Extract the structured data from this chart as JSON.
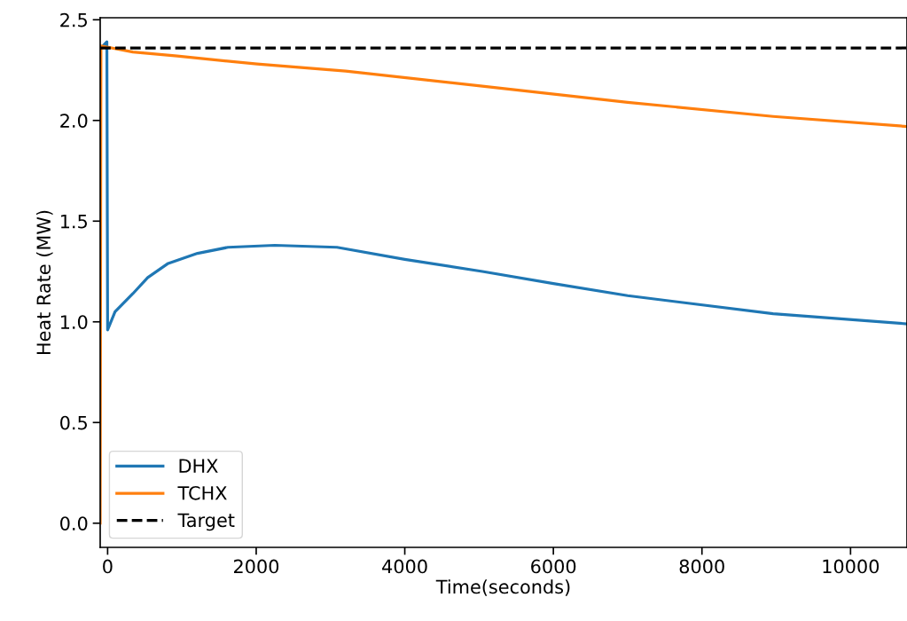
{
  "chart_data": {
    "type": "line",
    "xlabel": "Time(seconds)",
    "ylabel": "Heat Rate (MW)",
    "xlim": [
      -100,
      10760
    ],
    "ylim": [
      -0.12,
      2.51
    ],
    "xticks": [
      0,
      2000,
      4000,
      6000,
      8000,
      10000
    ],
    "yticks": [
      {
        "value": 0,
        "label": "0.0"
      },
      0.5,
      {
        "value": 1,
        "label": "1.0"
      },
      1.5,
      {
        "value": 2,
        "label": "2.0"
      },
      2.5
    ],
    "grid": false,
    "legend": "bottom left",
    "line_style": "solid",
    "marker": "none",
    "series": [
      {
        "name": "DHX",
        "color": "#1f77b4",
        "x": [
          -65,
          -10,
          0,
          100,
          340,
          540,
          815,
          1210,
          1620,
          2250,
          3087,
          4000,
          5045,
          6000,
          7000,
          8958,
          10760
        ],
        "values": [
          2.37,
          2.39,
          0.96,
          1.05,
          1.14,
          1.22,
          1.29,
          1.34,
          1.37,
          1.38,
          1.37,
          1.31,
          1.25,
          1.19,
          1.13,
          1.04,
          0.99
        ]
      },
      {
        "name": "TCHX",
        "color": "#ff7f0e",
        "x": [
          -100,
          -90,
          340,
          937,
          2012,
          3205,
          5045,
          7000,
          8958,
          10760
        ],
        "values": [
          0,
          2.37,
          2.34,
          2.32,
          2.28,
          2.245,
          2.17,
          2.09,
          2.02,
          1.97
        ]
      }
    ],
    "ref_lines": [
      {
        "axis": "y",
        "value": 2.36,
        "label": "Target",
        "color": "#000000",
        "line_style": "dashed"
      }
    ]
  }
}
